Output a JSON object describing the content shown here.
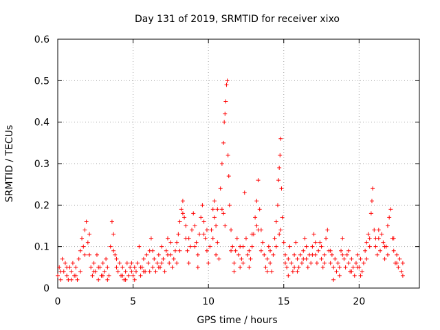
{
  "chart_data": {
    "type": "scatter",
    "title": "Day 131 of 2019, SRMTID for receiver xixo",
    "xlabel": "GPS time / hours",
    "ylabel": "SRMTID / TECUs",
    "xlim": [
      0,
      24
    ],
    "ylim": [
      0,
      0.6
    ],
    "xticks": [
      0,
      5,
      10,
      15,
      20
    ],
    "xtick_labels": [
      "0",
      "5",
      "10",
      "15",
      "20"
    ],
    "yticks": [
      0,
      0.1,
      0.2,
      0.3,
      0.4,
      0.5,
      0.6
    ],
    "ytick_labels": [
      "0",
      "0.1",
      "0.2",
      "0.3",
      "0.4",
      "0.5",
      "0.6"
    ],
    "grid": true,
    "marker": "+",
    "color": "#ff0000",
    "series": [
      {
        "name": "SRMTID",
        "points": [
          [
            0.0,
            0.03
          ],
          [
            0.1,
            0.05
          ],
          [
            0.2,
            0.02
          ],
          [
            0.3,
            0.07
          ],
          [
            0.4,
            0.04
          ],
          [
            0.5,
            0.06
          ],
          [
            0.6,
            0.03
          ],
          [
            0.7,
            0.02
          ],
          [
            0.8,
            0.05
          ],
          [
            0.9,
            0.04
          ],
          [
            1.0,
            0.06
          ],
          [
            1.1,
            0.03
          ],
          [
            1.2,
            0.05
          ],
          [
            1.3,
            0.02
          ],
          [
            1.4,
            0.07
          ],
          [
            1.5,
            0.09
          ],
          [
            1.6,
            0.12
          ],
          [
            1.7,
            0.1
          ],
          [
            1.8,
            0.14
          ],
          [
            1.9,
            0.16
          ],
          [
            2.0,
            0.11
          ],
          [
            2.1,
            0.08
          ],
          [
            2.2,
            0.05
          ],
          [
            2.3,
            0.03
          ],
          [
            2.4,
            0.06
          ],
          [
            2.5,
            0.04
          ],
          [
            2.6,
            0.08
          ],
          [
            2.7,
            0.02
          ],
          [
            2.8,
            0.05
          ],
          [
            2.9,
            0.03
          ],
          [
            3.0,
            0.06
          ],
          [
            3.1,
            0.04
          ],
          [
            3.2,
            0.07
          ],
          [
            3.3,
            0.05
          ],
          [
            3.4,
            0.03
          ],
          [
            3.5,
            0.1
          ],
          [
            3.6,
            0.16
          ],
          [
            3.7,
            0.13
          ],
          [
            3.8,
            0.08
          ],
          [
            3.9,
            0.05
          ],
          [
            4.0,
            0.04
          ],
          [
            4.1,
            0.06
          ],
          [
            4.2,
            0.03
          ],
          [
            4.3,
            0.05
          ],
          [
            4.4,
            0.02
          ],
          [
            4.5,
            0.04
          ],
          [
            4.6,
            0.06
          ],
          [
            4.7,
            0.03
          ],
          [
            4.8,
            0.05
          ],
          [
            4.9,
            0.04
          ],
          [
            5.0,
            0.03
          ],
          [
            5.1,
            0.05
          ],
          [
            5.2,
            0.04
          ],
          [
            5.3,
            0.06
          ],
          [
            5.4,
            0.1
          ],
          [
            5.5,
            0.03
          ],
          [
            5.6,
            0.05
          ],
          [
            5.7,
            0.07
          ],
          [
            5.8,
            0.04
          ],
          [
            5.9,
            0.08
          ],
          [
            6.0,
            0.06
          ],
          [
            6.1,
            0.09
          ],
          [
            6.2,
            0.12
          ],
          [
            6.3,
            0.05
          ],
          [
            6.4,
            0.07
          ],
          [
            6.5,
            0.04
          ],
          [
            6.6,
            0.06
          ],
          [
            6.7,
            0.08
          ],
          [
            6.8,
            0.05
          ],
          [
            6.9,
            0.1
          ],
          [
            7.0,
            0.07
          ],
          [
            7.1,
            0.04
          ],
          [
            7.2,
            0.09
          ],
          [
            7.3,
            0.12
          ],
          [
            7.4,
            0.06
          ],
          [
            7.5,
            0.08
          ],
          [
            7.6,
            0.05
          ],
          [
            7.7,
            0.07
          ],
          [
            7.8,
            0.09
          ],
          [
            7.9,
            0.11
          ],
          [
            8.0,
            0.13
          ],
          [
            8.1,
            0.16
          ],
          [
            8.2,
            0.19
          ],
          [
            8.3,
            0.21
          ],
          [
            8.4,
            0.17
          ],
          [
            8.5,
            0.12
          ],
          [
            8.6,
            0.09
          ],
          [
            8.7,
            0.06
          ],
          [
            8.8,
            0.1
          ],
          [
            8.9,
            0.14
          ],
          [
            9.0,
            0.18
          ],
          [
            9.1,
            0.15
          ],
          [
            9.2,
            0.11
          ],
          [
            9.3,
            0.08
          ],
          [
            9.4,
            0.13
          ],
          [
            9.5,
            0.17
          ],
          [
            9.6,
            0.2
          ],
          [
            9.7,
            0.16
          ],
          [
            9.8,
            0.12
          ],
          [
            9.9,
            0.09
          ],
          [
            10.0,
            0.06
          ],
          [
            10.1,
            0.1
          ],
          [
            10.2,
            0.14
          ],
          [
            10.3,
            0.19
          ],
          [
            10.4,
            0.21
          ],
          [
            10.5,
            0.15
          ],
          [
            10.6,
            0.11
          ],
          [
            10.7,
            0.07
          ],
          [
            10.8,
            0.24
          ],
          [
            10.9,
            0.3
          ],
          [
            11.0,
            0.35
          ],
          [
            11.05,
            0.4
          ],
          [
            11.1,
            0.42
          ],
          [
            11.15,
            0.45
          ],
          [
            11.2,
            0.49
          ],
          [
            11.25,
            0.5
          ],
          [
            11.3,
            0.32
          ],
          [
            11.35,
            0.27
          ],
          [
            11.4,
            0.2
          ],
          [
            11.5,
            0.14
          ],
          [
            11.6,
            0.1
          ],
          [
            11.7,
            0.06
          ],
          [
            11.8,
            0.09
          ],
          [
            11.9,
            0.12
          ],
          [
            12.0,
            0.08
          ],
          [
            12.1,
            0.05
          ],
          [
            12.2,
            0.07
          ],
          [
            12.3,
            0.1
          ],
          [
            12.4,
            0.23
          ],
          [
            12.5,
            0.12
          ],
          [
            12.6,
            0.08
          ],
          [
            12.7,
            0.05
          ],
          [
            12.8,
            0.07
          ],
          [
            12.9,
            0.1
          ],
          [
            13.0,
            0.13
          ],
          [
            13.1,
            0.17
          ],
          [
            13.2,
            0.21
          ],
          [
            13.3,
            0.26
          ],
          [
            13.4,
            0.19
          ],
          [
            13.5,
            0.14
          ],
          [
            13.6,
            0.11
          ],
          [
            13.7,
            0.08
          ],
          [
            13.8,
            0.05
          ],
          [
            13.9,
            0.07
          ],
          [
            14.0,
            0.1
          ],
          [
            14.1,
            0.06
          ],
          [
            14.2,
            0.04
          ],
          [
            14.3,
            0.08
          ],
          [
            14.4,
            0.12
          ],
          [
            14.5,
            0.16
          ],
          [
            14.6,
            0.2
          ],
          [
            14.65,
            0.26
          ],
          [
            14.7,
            0.29
          ],
          [
            14.75,
            0.32
          ],
          [
            14.8,
            0.36
          ],
          [
            14.85,
            0.24
          ],
          [
            14.9,
            0.17
          ],
          [
            15.0,
            0.11
          ],
          [
            15.1,
            0.08
          ],
          [
            15.2,
            0.05
          ],
          [
            15.3,
            0.07
          ],
          [
            15.4,
            0.1
          ],
          [
            15.5,
            0.06
          ],
          [
            15.6,
            0.04
          ],
          [
            15.7,
            0.08
          ],
          [
            15.8,
            0.11
          ],
          [
            15.9,
            0.07
          ],
          [
            16.0,
            0.05
          ],
          [
            16.1,
            0.08
          ],
          [
            16.2,
            0.06
          ],
          [
            16.3,
            0.09
          ],
          [
            16.4,
            0.12
          ],
          [
            16.5,
            0.07
          ],
          [
            16.6,
            0.05
          ],
          [
            16.7,
            0.08
          ],
          [
            16.8,
            0.06
          ],
          [
            16.9,
            0.1
          ],
          [
            17.0,
            0.13
          ],
          [
            17.1,
            0.08
          ],
          [
            17.2,
            0.06
          ],
          [
            17.3,
            0.09
          ],
          [
            17.4,
            0.11
          ],
          [
            17.5,
            0.07
          ],
          [
            17.6,
            0.05
          ],
          [
            17.7,
            0.08
          ],
          [
            17.8,
            0.12
          ],
          [
            17.9,
            0.14
          ],
          [
            18.0,
            0.09
          ],
          [
            18.1,
            0.06
          ],
          [
            18.2,
            0.08
          ],
          [
            18.3,
            0.05
          ],
          [
            18.4,
            0.07
          ],
          [
            18.5,
            0.04
          ],
          [
            18.6,
            0.06
          ],
          [
            18.7,
            0.03
          ],
          [
            18.8,
            0.09
          ],
          [
            18.9,
            0.12
          ],
          [
            19.0,
            0.07
          ],
          [
            19.1,
            0.05
          ],
          [
            19.2,
            0.08
          ],
          [
            19.3,
            0.06
          ],
          [
            19.4,
            0.04
          ],
          [
            19.5,
            0.07
          ],
          [
            19.6,
            0.05
          ],
          [
            19.7,
            0.03
          ],
          [
            19.8,
            0.06
          ],
          [
            19.9,
            0.08
          ],
          [
            20.0,
            0.05
          ],
          [
            20.1,
            0.07
          ],
          [
            20.2,
            0.04
          ],
          [
            20.3,
            0.06
          ],
          [
            20.4,
            0.09
          ],
          [
            20.5,
            0.11
          ],
          [
            20.6,
            0.13
          ],
          [
            20.7,
            0.1
          ],
          [
            20.8,
            0.18
          ],
          [
            20.85,
            0.21
          ],
          [
            20.9,
            0.24
          ],
          [
            21.0,
            0.14
          ],
          [
            21.1,
            0.1
          ],
          [
            21.2,
            0.08
          ],
          [
            21.3,
            0.12
          ],
          [
            21.4,
            0.09
          ],
          [
            21.5,
            0.13
          ],
          [
            21.6,
            0.11
          ],
          [
            21.7,
            0.07
          ],
          [
            21.8,
            0.1
          ],
          [
            21.9,
            0.15
          ],
          [
            22.0,
            0.17
          ],
          [
            22.1,
            0.19
          ],
          [
            22.2,
            0.12
          ],
          [
            22.3,
            0.09
          ],
          [
            22.4,
            0.06
          ],
          [
            22.5,
            0.08
          ],
          [
            22.6,
            0.05
          ],
          [
            22.7,
            0.07
          ],
          [
            22.8,
            0.04
          ],
          [
            22.9,
            0.06
          ],
          [
            0.2,
            0.04
          ],
          [
            0.6,
            0.05
          ],
          [
            1.2,
            0.03
          ],
          [
            1.8,
            0.08
          ],
          [
            2.4,
            0.04
          ],
          [
            3.0,
            0.03
          ],
          [
            3.7,
            0.09
          ],
          [
            4.3,
            0.03
          ],
          [
            4.9,
            0.06
          ],
          [
            5.5,
            0.05
          ],
          [
            6.1,
            0.04
          ],
          [
            6.7,
            0.05
          ],
          [
            7.3,
            0.08
          ],
          [
            7.9,
            0.06
          ],
          [
            8.5,
            0.15
          ],
          [
            9.1,
            0.1
          ],
          [
            9.7,
            0.13
          ],
          [
            10.3,
            0.12
          ],
          [
            10.9,
            0.19
          ],
          [
            11.5,
            0.09
          ],
          [
            12.1,
            0.1
          ],
          [
            12.7,
            0.09
          ],
          [
            13.3,
            0.14
          ],
          [
            13.9,
            0.04
          ],
          [
            14.5,
            0.1
          ],
          [
            15.1,
            0.06
          ],
          [
            15.7,
            0.05
          ],
          [
            16.3,
            0.07
          ],
          [
            16.9,
            0.08
          ],
          [
            17.5,
            0.1
          ],
          [
            18.1,
            0.09
          ],
          [
            18.7,
            0.05
          ],
          [
            19.3,
            0.09
          ],
          [
            19.9,
            0.05
          ],
          [
            20.5,
            0.07
          ],
          [
            21.1,
            0.12
          ],
          [
            21.7,
            0.1
          ],
          [
            22.3,
            0.12
          ],
          [
            22.9,
            0.03
          ],
          [
            0.9,
            0.02
          ],
          [
            1.5,
            0.04
          ],
          [
            2.1,
            0.13
          ],
          [
            2.7,
            0.05
          ],
          [
            3.3,
            0.02
          ],
          [
            3.9,
            0.07
          ],
          [
            4.5,
            0.02
          ],
          [
            5.1,
            0.02
          ],
          [
            5.7,
            0.04
          ],
          [
            6.3,
            0.09
          ],
          [
            6.9,
            0.06
          ],
          [
            7.5,
            0.11
          ],
          [
            8.1,
            0.09
          ],
          [
            8.7,
            0.12
          ],
          [
            9.3,
            0.05
          ],
          [
            9.9,
            0.14
          ],
          [
            10.5,
            0.08
          ],
          [
            11.1,
            0.15
          ],
          [
            11.7,
            0.04
          ],
          [
            12.3,
            0.06
          ],
          [
            12.9,
            0.13
          ],
          [
            13.5,
            0.09
          ],
          [
            14.1,
            0.09
          ],
          [
            14.7,
            0.13
          ],
          [
            15.3,
            0.03
          ],
          [
            15.9,
            0.04
          ],
          [
            16.5,
            0.1
          ],
          [
            17.1,
            0.11
          ],
          [
            17.7,
            0.06
          ],
          [
            18.3,
            0.02
          ],
          [
            18.9,
            0.08
          ],
          [
            19.5,
            0.04
          ],
          [
            20.1,
            0.03
          ],
          [
            20.7,
            0.12
          ],
          [
            21.3,
            0.14
          ],
          [
            21.9,
            0.08
          ],
          [
            22.5,
            0.06
          ],
          [
            10.4,
            0.17
          ],
          [
            10.6,
            0.19
          ],
          [
            11.0,
            0.18
          ],
          [
            13.2,
            0.15
          ],
          [
            14.8,
            0.14
          ],
          [
            8.3,
            0.18
          ]
        ]
      }
    ]
  }
}
